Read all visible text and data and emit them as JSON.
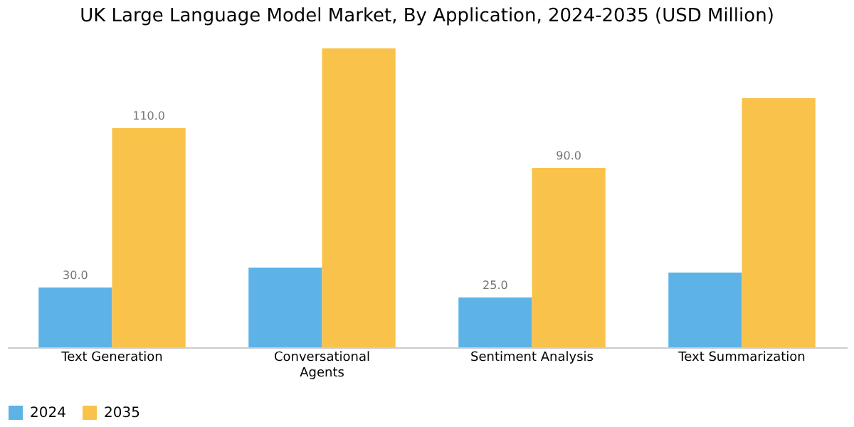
{
  "chart_data": {
    "type": "bar",
    "title": "UK Large Language Model Market, By Application, 2024-2035 (USD Million)",
    "categories": [
      "Text Generation",
      "Conversational Agents",
      "Sentiment Analysis",
      "Text Summarization"
    ],
    "series": [
      {
        "name": "2024",
        "color": "#5db3e6",
        "values": [
          30,
          40,
          25,
          37.5
        ],
        "value_labels": [
          "30.0",
          null,
          "25.0",
          null
        ]
      },
      {
        "name": "2035",
        "color": "#f9c34b",
        "values": [
          110,
          150,
          90,
          125
        ],
        "value_labels": [
          "110.0",
          null,
          "90.0",
          null
        ]
      }
    ],
    "legend": "bottom",
    "tick_labels": "x"
  }
}
